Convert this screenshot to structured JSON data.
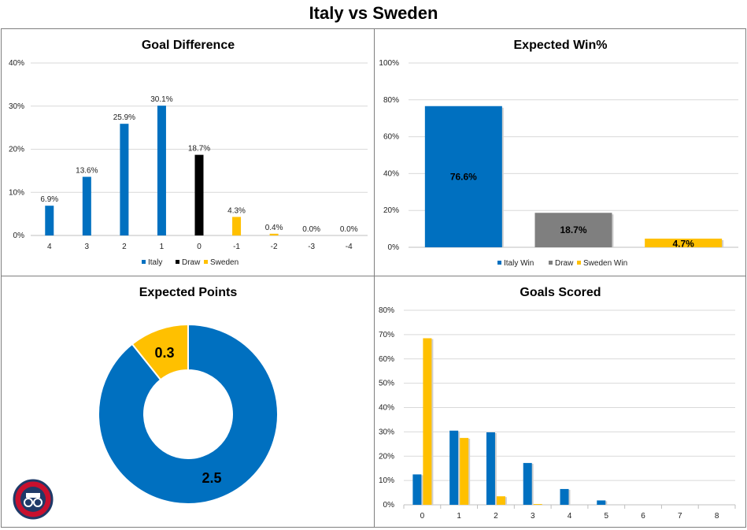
{
  "title": "Italy vs Sweden",
  "colors": {
    "italy": "#0070C0",
    "draw_black": "#000000",
    "draw_gray": "#7F7F7F",
    "sweden": "#FFC000",
    "grid": "#D9D9D9"
  },
  "chart_data": [
    {
      "id": "goal-difference",
      "type": "bar",
      "title": "Goal Difference",
      "categories": [
        "4",
        "3",
        "2",
        "1",
        "0",
        "-1",
        "-2",
        "-3",
        "-4"
      ],
      "values": [
        6.9,
        13.6,
        25.9,
        30.1,
        18.7,
        4.3,
        0.4,
        0.0,
        0.0
      ],
      "data_labels": [
        "6.9%",
        "13.6%",
        "25.9%",
        "30.1%",
        "18.7%",
        "4.3%",
        "0.4%",
        "0.0%",
        "0.0%"
      ],
      "bar_series": [
        "Italy",
        "Italy",
        "Italy",
        "Italy",
        "Draw",
        "Sweden",
        "Sweden",
        "Sweden",
        "Sweden"
      ],
      "legend": [
        "Italy",
        "Draw",
        "Sweden"
      ],
      "ylim": [
        0,
        40
      ],
      "yticks": [
        "0%",
        "10%",
        "20%",
        "30%",
        "40%"
      ],
      "grid": true,
      "legend_position": "bottom"
    },
    {
      "id": "expected-win",
      "type": "bar",
      "title": "Expected Win%",
      "categories": [
        "Italy Win",
        "Draw",
        "Sweden Win"
      ],
      "values": [
        76.6,
        18.7,
        4.7
      ],
      "data_labels": [
        "76.6%",
        "18.7%",
        "4.7%"
      ],
      "legend": [
        "Italy Win",
        "Draw",
        "Sweden Win"
      ],
      "ylim": [
        0,
        100
      ],
      "yticks": [
        "0%",
        "20%",
        "40%",
        "60%",
        "80%",
        "100%"
      ],
      "grid": true,
      "legend_position": "bottom"
    },
    {
      "id": "expected-points",
      "type": "pie",
      "title": "Expected Points",
      "donut": true,
      "slices": [
        {
          "name": "Italy",
          "value": 2.5,
          "label": "2.5"
        },
        {
          "name": "Sweden",
          "value": 0.3,
          "label": "0.3"
        }
      ]
    },
    {
      "id": "goals-scored",
      "type": "bar",
      "title": "Goals Scored",
      "categories": [
        "0",
        "1",
        "2",
        "3",
        "4",
        "5",
        "6",
        "7",
        "8"
      ],
      "series": [
        {
          "name": "Italy",
          "values": [
            12.5,
            30.5,
            29.8,
            17.2,
            6.5,
            1.8,
            0.0,
            0.0,
            0.0
          ]
        },
        {
          "name": "Sweden",
          "values": [
            68.5,
            27.5,
            3.5,
            0.3,
            0.0,
            0.0,
            0.0,
            0.0,
            0.0
          ]
        }
      ],
      "ylim": [
        0,
        80
      ],
      "yticks": [
        "0%",
        "10%",
        "20%",
        "30%",
        "40%",
        "50%",
        "60%",
        "70%",
        "80%"
      ],
      "grid": true
    }
  ]
}
